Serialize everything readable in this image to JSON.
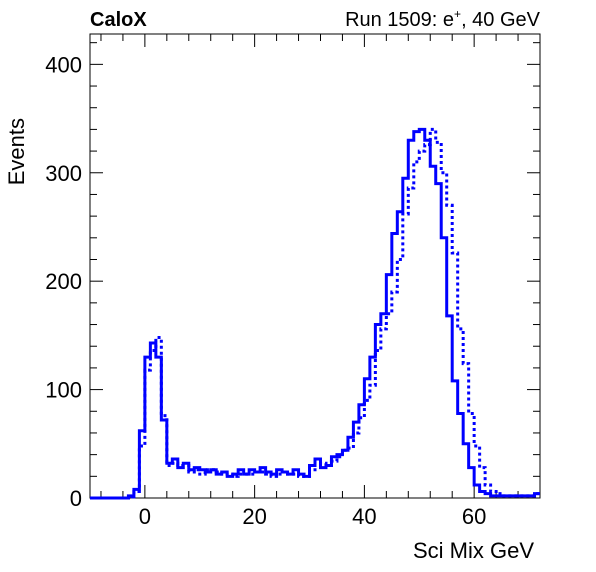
{
  "chart_data": {
    "type": "line",
    "title_left": "CaloX",
    "title_right": "Run 1509: e",
    "title_right_sup": "+",
    "title_right_tail": ", 40 GeV",
    "xlabel": "Sci Mix GeV",
    "ylabel": "Events",
    "xlim": [
      -10,
      72
    ],
    "ylim": [
      0,
      428
    ],
    "x_ticks": [
      0,
      20,
      40,
      60
    ],
    "y_ticks": [
      0,
      100,
      200,
      300,
      400
    ],
    "bin_width": 1,
    "bin_start": -10,
    "grid": false,
    "series": [
      {
        "style": "solid",
        "color": "#0000ff",
        "values": [
          0,
          0,
          0,
          0,
          0,
          0,
          0,
          2,
          8,
          62,
          130,
          143,
          130,
          72,
          32,
          36,
          28,
          32,
          26,
          28,
          26,
          24,
          26,
          22,
          24,
          20,
          22,
          26,
          22,
          26,
          24,
          28,
          24,
          22,
          26,
          24,
          22,
          26,
          22,
          20,
          30,
          36,
          28,
          30,
          38,
          40,
          44,
          56,
          70,
          86,
          110,
          130,
          160,
          170,
          206,
          244,
          264,
          295,
          330,
          338,
          340,
          330,
          306,
          290,
          240,
          168,
          108,
          78,
          50,
          28,
          12,
          6,
          4,
          2,
          2,
          2,
          2,
          2,
          2,
          2,
          2,
          4
        ]
      },
      {
        "style": "dotted",
        "color": "#0000ff",
        "values": [
          0,
          0,
          0,
          0,
          0,
          0,
          0,
          1,
          6,
          48,
          118,
          136,
          148,
          76,
          30,
          32,
          30,
          30,
          24,
          26,
          22,
          26,
          26,
          24,
          22,
          22,
          20,
          22,
          22,
          22,
          24,
          24,
          22,
          20,
          22,
          24,
          22,
          22,
          20,
          20,
          26,
          32,
          32,
          30,
          34,
          38,
          44,
          46,
          60,
          74,
          90,
          104,
          136,
          156,
          170,
          190,
          220,
          262,
          286,
          310,
          320,
          326,
          340,
          328,
          300,
          270,
          226,
          156,
          124,
          78,
          48,
          28,
          12,
          6,
          4,
          2,
          2,
          2,
          2,
          2,
          2,
          4
        ]
      }
    ]
  }
}
